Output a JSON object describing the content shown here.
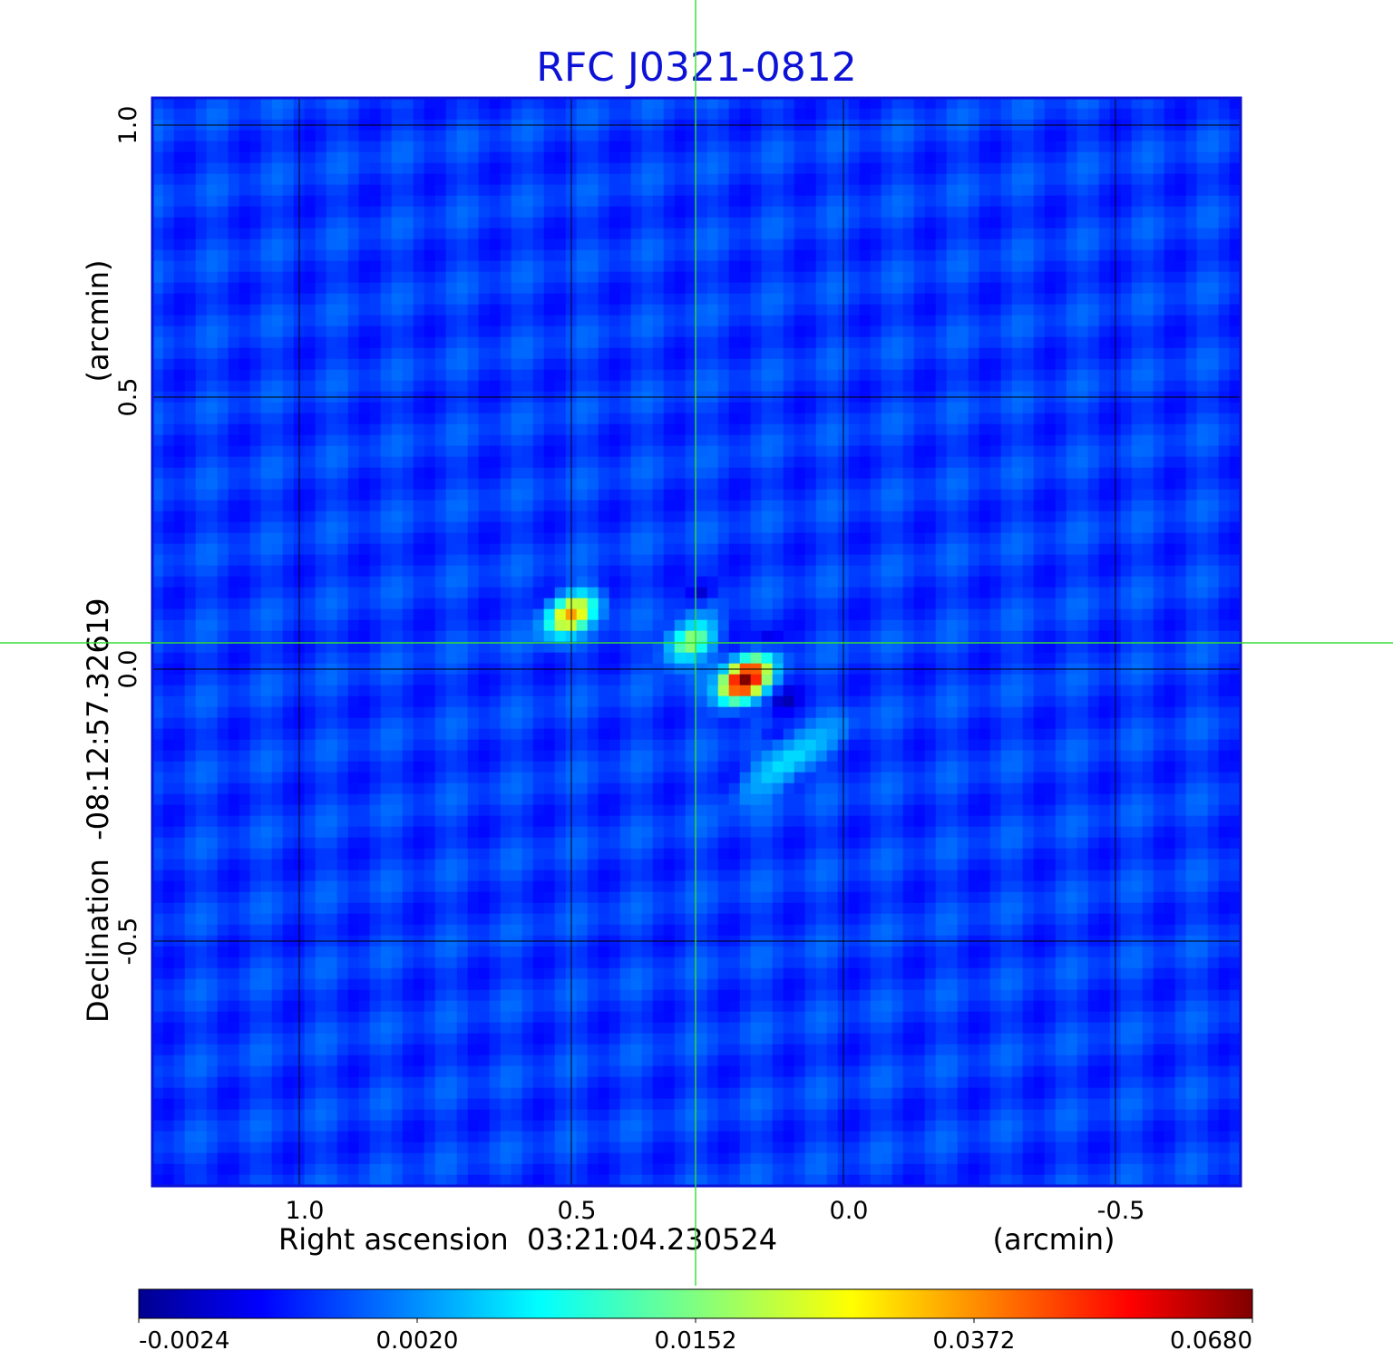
{
  "chart_data": {
    "type": "heatmap",
    "title": "RFC J0321-0812",
    "xlabel": "Right ascension  03:21:04.230524",
    "xunit": "(arcmin)",
    "ylabel": "Declination  -08:12:57.32619",
    "yunit": "(arcmin)",
    "xlim": [
      1.27,
      -0.73
    ],
    "ylim": [
      -0.95,
      1.05
    ],
    "x_ticks": [
      1.0,
      0.5,
      0.0,
      -0.5
    ],
    "x_tick_labels": [
      "1.0",
      "0.5",
      "0.0",
      "-0.5"
    ],
    "y_ticks": [
      1.0,
      0.5,
      0.0,
      -0.5
    ],
    "y_tick_labels": [
      "1.0",
      "0.5",
      "0.0",
      "-0.5"
    ],
    "grid": true,
    "crosshair": [
      0.27,
      0.045
    ],
    "colormap": "jet",
    "colorbar": {
      "ticks": [
        -0.0024,
        0.002,
        0.0152,
        0.0372,
        0.068
      ],
      "tick_labels": [
        "-0.0024",
        "0.0020",
        "0.0152",
        "0.0372",
        "0.0680"
      ],
      "placement": "bottom"
    },
    "background_level": 0.0008,
    "components": [
      {
        "x": 0.18,
        "y": -0.02,
        "peak": 0.068
      },
      {
        "x": 0.5,
        "y": 0.1,
        "peak": 0.033
      },
      {
        "x": 0.28,
        "y": 0.05,
        "peak": 0.017
      },
      {
        "x": 0.1,
        "y": -0.17,
        "peak": 0.007
      }
    ],
    "negative_components": [
      {
        "x": 0.26,
        "y": 0.14,
        "peak": -0.0024
      },
      {
        "x": 0.14,
        "y": 0.05,
        "peak": -0.0018
      },
      {
        "x": 0.11,
        "y": -0.06,
        "peak": -0.0018
      },
      {
        "x": 0.13,
        "y": -0.12,
        "peak": -0.0015
      }
    ]
  }
}
